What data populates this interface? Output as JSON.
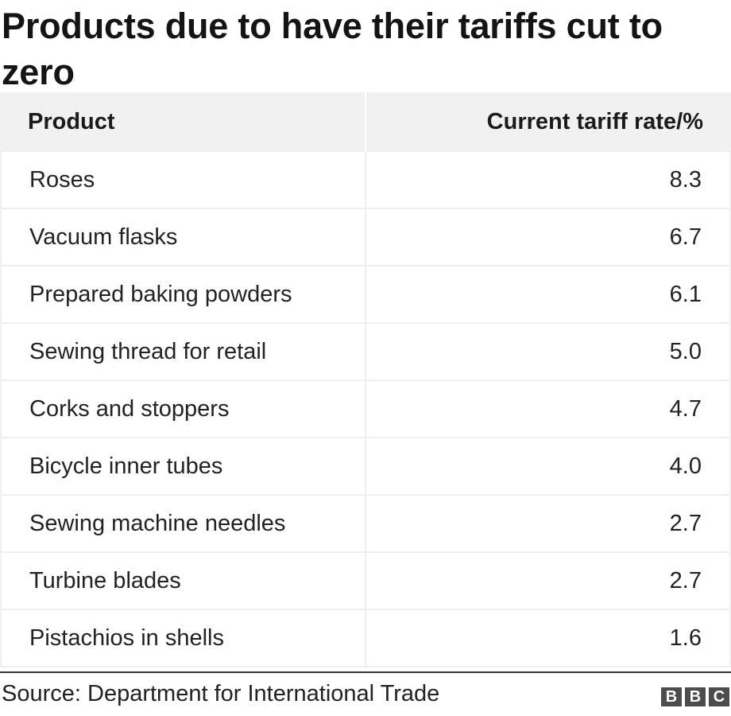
{
  "title": "Products due to have their tariffs cut to zero",
  "table": {
    "headers": [
      "Product",
      "Current tariff rate/%"
    ],
    "rows": [
      [
        "Roses",
        "8.3"
      ],
      [
        "Vacuum flasks",
        "6.7"
      ],
      [
        "Prepared baking powders",
        "6.1"
      ],
      [
        "Sewing thread for retail",
        "5.0"
      ],
      [
        "Corks and stoppers",
        "4.7"
      ],
      [
        "Bicycle inner tubes",
        "4.0"
      ],
      [
        "Sewing machine needles",
        "2.7"
      ],
      [
        "Turbine blades",
        "2.7"
      ],
      [
        "Pistachios in shells",
        "1.6"
      ]
    ]
  },
  "chart_data": {
    "type": "table",
    "title": "Products due to have their tariffs cut to zero",
    "columns": [
      "Product",
      "Current tariff rate/%"
    ],
    "categories": [
      "Roses",
      "Vacuum flasks",
      "Prepared baking powders",
      "Sewing thread for retail",
      "Corks and stoppers",
      "Bicycle inner tubes",
      "Sewing machine needles",
      "Turbine blades",
      "Pistachios in shells"
    ],
    "values": [
      8.3,
      6.7,
      6.1,
      5.0,
      4.7,
      4.0,
      2.7,
      2.7,
      1.6
    ]
  },
  "footer": {
    "source": "Source: Department for International Trade",
    "logo_letters": [
      "B",
      "B",
      "C"
    ]
  },
  "colors": {
    "header_bg": "#f1f1f1",
    "grid_line": "#efefef",
    "text": "#222222",
    "logo_bg": "#4d4d4d"
  }
}
